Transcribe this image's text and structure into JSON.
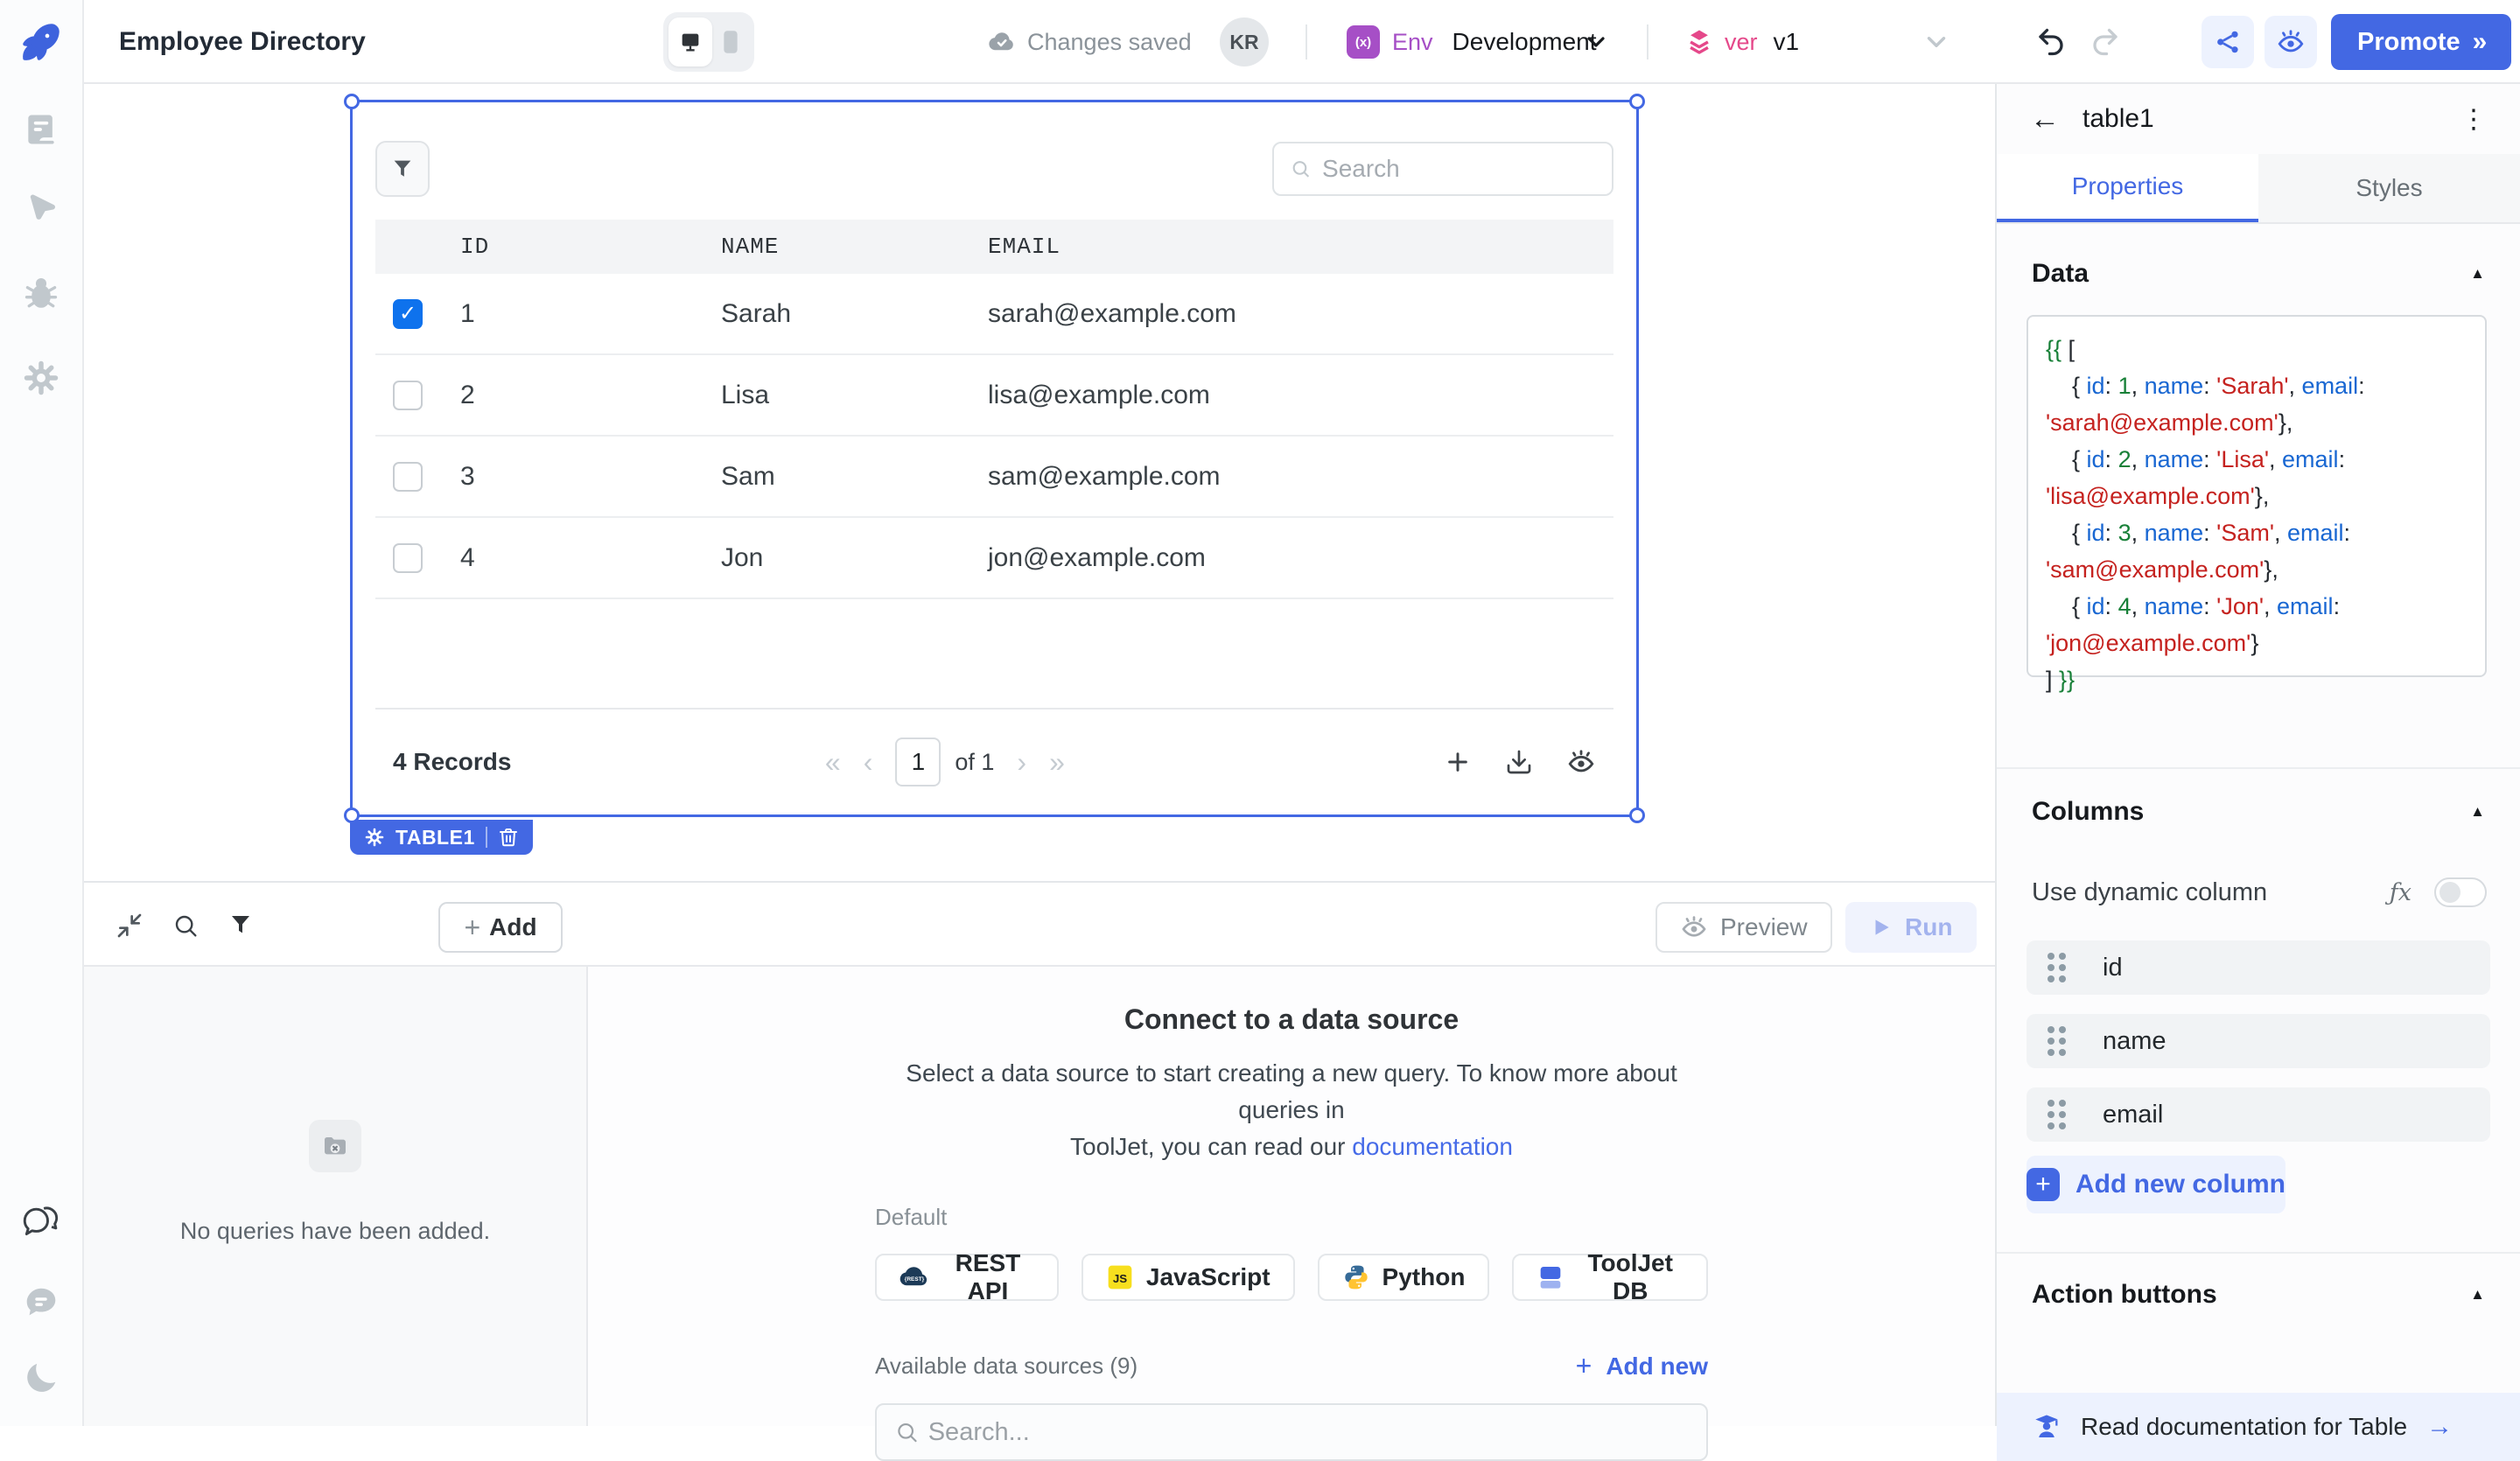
{
  "header": {
    "title": "Employee Directory",
    "saved_status": "Changes saved",
    "avatar_initials": "KR",
    "env_icon_glyph": "(x)",
    "env_label": "Env",
    "env_value": "Development",
    "version_label": "ver",
    "version_value": "v1",
    "promote_label": "Promote",
    "promote_arrows": "»"
  },
  "table": {
    "badge": "TABLE1",
    "search_placeholder": "Search",
    "columns": [
      "ID",
      "NAME",
      "EMAIL"
    ],
    "rows": [
      {
        "id": 1,
        "name": "Sarah",
        "email": "sarah@example.com",
        "checked": true
      },
      {
        "id": 2,
        "name": "Lisa",
        "email": "lisa@example.com",
        "checked": false
      },
      {
        "id": 3,
        "name": "Sam",
        "email": "sam@example.com",
        "checked": false
      },
      {
        "id": 4,
        "name": "Jon",
        "email": "jon@example.com",
        "checked": false
      }
    ],
    "records_label": "4 Records",
    "pagination": {
      "first": "«",
      "prev": "‹",
      "current": "1",
      "of": "of 1",
      "next": "›",
      "last": "»"
    },
    "check_glyph": "✓"
  },
  "query_panel": {
    "add_label": "Add",
    "add_plus": "+",
    "preview_label": "Preview",
    "run_label": "Run",
    "empty_message": "No queries have been added.",
    "connect_title": "Connect to a data source",
    "desc_line1": "Select a data source to start creating a new query. To know more about queries in",
    "desc_line2": "ToolJet, you can read our",
    "doc_link": "documentation",
    "default_label": "Default",
    "default_sources": [
      {
        "name": "REST API",
        "icon": "rest-api-icon"
      },
      {
        "name": "JavaScript",
        "icon": "javascript-icon"
      },
      {
        "name": "Python",
        "icon": "python-icon"
      },
      {
        "name": "ToolJet DB",
        "icon": "tooljetdb-icon"
      }
    ],
    "available_label": "Available data sources (9)",
    "add_new_plus": "+",
    "add_new_label": "Add new",
    "search_placeholder": "Search..."
  },
  "right_panel": {
    "widget_name": "table1",
    "kebab": "⋮",
    "back_arrow": "←",
    "tabs": [
      {
        "label": "Properties",
        "active": true
      },
      {
        "label": "Styles",
        "active": false
      }
    ],
    "collapse_glyph": "▲",
    "data_section": "Data",
    "code_open": "{{ [",
    "code_close": "] }}",
    "columns_section": "Columns",
    "use_dynamic_column": "Use dynamic column",
    "fx_label": "ƒx",
    "column_items": [
      "id",
      "name",
      "email"
    ],
    "add_new_column": "Add new column",
    "add_col_plus": "+",
    "action_buttons_section": "Action buttons",
    "doc_footer": "Read documentation for Table",
    "doc_footer_arrow": "→"
  },
  "colors": {
    "accent": "#4368E3",
    "accent_light": "#EDF2FE",
    "checkbox_blue": "#0E72ED",
    "env_purple": "#A64FC6",
    "version_pink": "#E5488A",
    "code_green": "#188038",
    "code_blue": "#1967D2",
    "code_red": "#C5221F"
  }
}
